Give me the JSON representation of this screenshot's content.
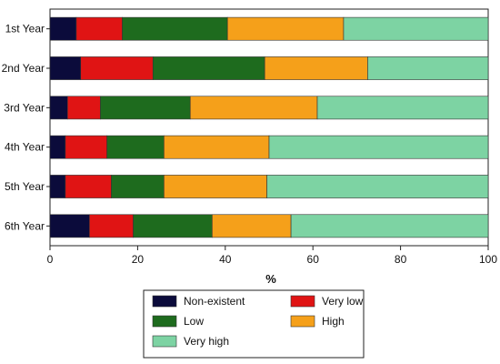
{
  "chart_data": {
    "type": "bar",
    "orientation": "horizontal",
    "stacked": true,
    "categories": [
      "1st Year",
      "2nd Year",
      "3rd Year",
      "4th Year",
      "5th Year",
      "6th Year"
    ],
    "series": [
      {
        "name": "Non-existent",
        "color": "#0b0b3b",
        "values": [
          6,
          7,
          4,
          3.5,
          3.5,
          9
        ]
      },
      {
        "name": "Very low",
        "color": "#e01414",
        "values": [
          10.5,
          16.5,
          7.5,
          9.5,
          10.5,
          10
        ]
      },
      {
        "name": "Low",
        "color": "#1e6b1e",
        "values": [
          24,
          25.5,
          20.5,
          13,
          12,
          18
        ]
      },
      {
        "name": "High",
        "color": "#f5a01a",
        "values": [
          26.5,
          23.5,
          29,
          24,
          23.5,
          18
        ]
      },
      {
        "name": "Very high",
        "color": "#7dd3a3",
        "values": [
          33,
          27.5,
          39,
          50,
          50.5,
          45
        ]
      }
    ],
    "xlabel": "%",
    "xlim": [
      0,
      100
    ],
    "xticks": [
      0,
      20,
      40,
      60,
      80,
      100
    ],
    "grid": false,
    "legend_position": "bottom"
  }
}
